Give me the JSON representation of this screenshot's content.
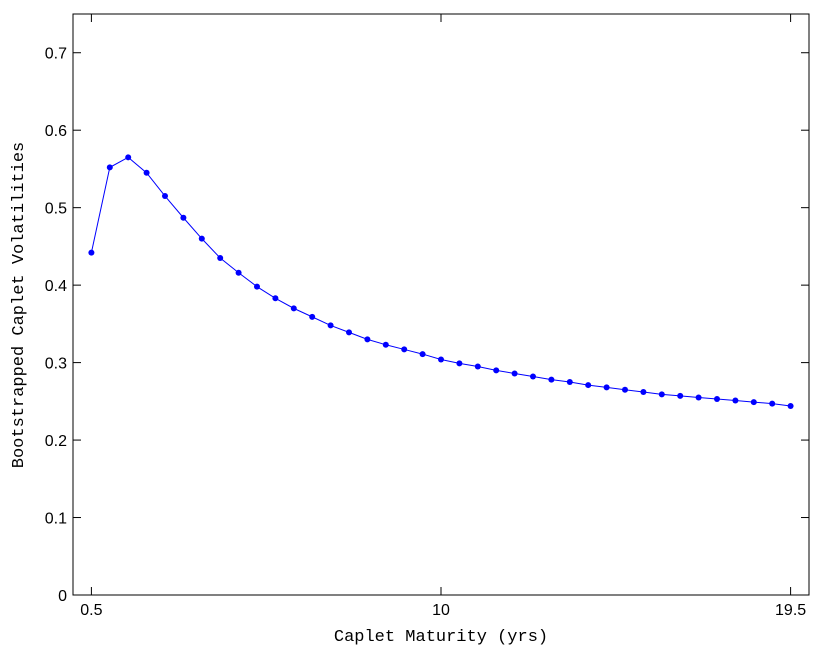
{
  "chart_data": {
    "type": "line",
    "title": "",
    "xlabel": "Caplet Maturity (yrs)",
    "ylabel": "Bootstrapped Caplet Volatilities",
    "xlim": [
      0.0,
      20.0
    ],
    "ylim": [
      0,
      0.75
    ],
    "x_ticks": [
      {
        "value": 0.5,
        "label": "0.5"
      },
      {
        "value": 10.0,
        "label": "10"
      },
      {
        "value": 19.5,
        "label": "19.5"
      }
    ],
    "y_ticks": [
      {
        "value": 0,
        "label": "0"
      },
      {
        "value": 0.1,
        "label": "0.1"
      },
      {
        "value": 0.2,
        "label": "0.2"
      },
      {
        "value": 0.3,
        "label": "0.3"
      },
      {
        "value": 0.4,
        "label": "0.4"
      },
      {
        "value": 0.5,
        "label": "0.5"
      },
      {
        "value": 0.6,
        "label": "0.6"
      },
      {
        "value": 0.7,
        "label": "0.7"
      }
    ],
    "grid": false,
    "marker": "dot",
    "color": "#0000ff",
    "x": [
      0.5,
      1.0,
      1.5,
      2.0,
      2.5,
      3.0,
      3.5,
      4.0,
      4.5,
      5.0,
      5.5,
      6.0,
      6.5,
      7.0,
      7.5,
      8.0,
      8.5,
      9.0,
      9.5,
      10.0,
      10.5,
      11.0,
      11.5,
      12.0,
      12.5,
      13.0,
      13.5,
      14.0,
      14.5,
      15.0,
      15.5,
      16.0,
      16.5,
      17.0,
      17.5,
      18.0,
      18.5,
      19.0,
      19.5
    ],
    "y": [
      0.442,
      0.552,
      0.565,
      0.545,
      0.515,
      0.487,
      0.46,
      0.435,
      0.416,
      0.398,
      0.383,
      0.37,
      0.359,
      0.348,
      0.339,
      0.33,
      0.323,
      0.317,
      0.311,
      0.304,
      0.299,
      0.295,
      0.29,
      0.286,
      0.282,
      0.278,
      0.275,
      0.271,
      0.268,
      0.265,
      0.262,
      0.259,
      0.257,
      0.255,
      0.253,
      0.251,
      0.249,
      0.247,
      0.244
    ]
  }
}
